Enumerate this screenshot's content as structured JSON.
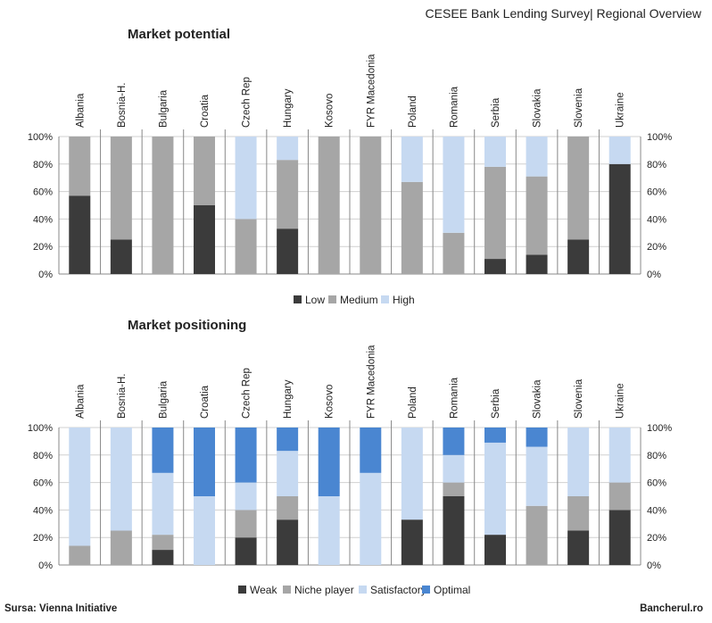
{
  "header": {
    "title": "CESEE Bank Lending Survey| Regional Overview"
  },
  "footer": {
    "source": "Sursa: Vienna Initiative",
    "brand": "Bancherul.ro"
  },
  "colors": {
    "dark": "#3b3b3b",
    "mid": "#a6a6a6",
    "light": "#c6d9f1",
    "blue": "#4a86d1",
    "grid": "#d0d0d0"
  },
  "chart_data": [
    {
      "type": "bar",
      "stacked": true,
      "title": "Market potential",
      "categories": [
        "Albania",
        "Bosnia-H.",
        "Bulgaria",
        "Croatia",
        "Czech Rep",
        "Hungary",
        "Kosovo",
        "FYR Macedonia",
        "Poland",
        "Romania",
        "Serbia",
        "Slovakia",
        "Slovenia",
        "Ukraine"
      ],
      "ylim": [
        0,
        100
      ],
      "yticks": [
        "0%",
        "20%",
        "40%",
        "60%",
        "80%",
        "100%"
      ],
      "legend_position": "bottom",
      "series": [
        {
          "name": "Low",
          "color": "#3b3b3b",
          "values": [
            57,
            25,
            0,
            50,
            0,
            33,
            0,
            0,
            0,
            0,
            11,
            14,
            25,
            80
          ]
        },
        {
          "name": "Medium",
          "color": "#a6a6a6",
          "values": [
            43,
            75,
            100,
            50,
            40,
            50,
            100,
            100,
            67,
            30,
            67,
            57,
            75,
            0
          ]
        },
        {
          "name": "High",
          "color": "#c6d9f1",
          "values": [
            0,
            0,
            0,
            0,
            60,
            17,
            0,
            0,
            33,
            70,
            22,
            29,
            0,
            20
          ]
        }
      ]
    },
    {
      "type": "bar",
      "stacked": true,
      "title": "Market positioning",
      "categories": [
        "Albania",
        "Bosnia-H.",
        "Bulgaria",
        "Croatia",
        "Czech Rep",
        "Hungary",
        "Kosovo",
        "FYR Macedonia",
        "Poland",
        "Romania",
        "Serbia",
        "Slovakia",
        "Slovenia",
        "Ukraine"
      ],
      "ylim": [
        0,
        100
      ],
      "yticks": [
        "0%",
        "20%",
        "40%",
        "60%",
        "80%",
        "100%"
      ],
      "legend_position": "bottom",
      "series": [
        {
          "name": "Weak",
          "color": "#3b3b3b",
          "values": [
            0,
            0,
            11,
            0,
            20,
            33,
            0,
            0,
            33,
            50,
            22,
            0,
            25,
            40
          ]
        },
        {
          "name": "Niche player",
          "color": "#a6a6a6",
          "values": [
            14,
            25,
            11,
            0,
            20,
            17,
            0,
            0,
            0,
            10,
            0,
            43,
            25,
            20
          ]
        },
        {
          "name": "Satisfactory",
          "color": "#c6d9f1",
          "values": [
            86,
            75,
            45,
            50,
            20,
            33,
            50,
            67,
            67,
            20,
            67,
            43,
            50,
            40
          ]
        },
        {
          "name": "Optimal",
          "color": "#4a86d1",
          "values": [
            0,
            0,
            33,
            50,
            40,
            17,
            50,
            33,
            0,
            20,
            11,
            14,
            0,
            0
          ]
        }
      ]
    }
  ]
}
